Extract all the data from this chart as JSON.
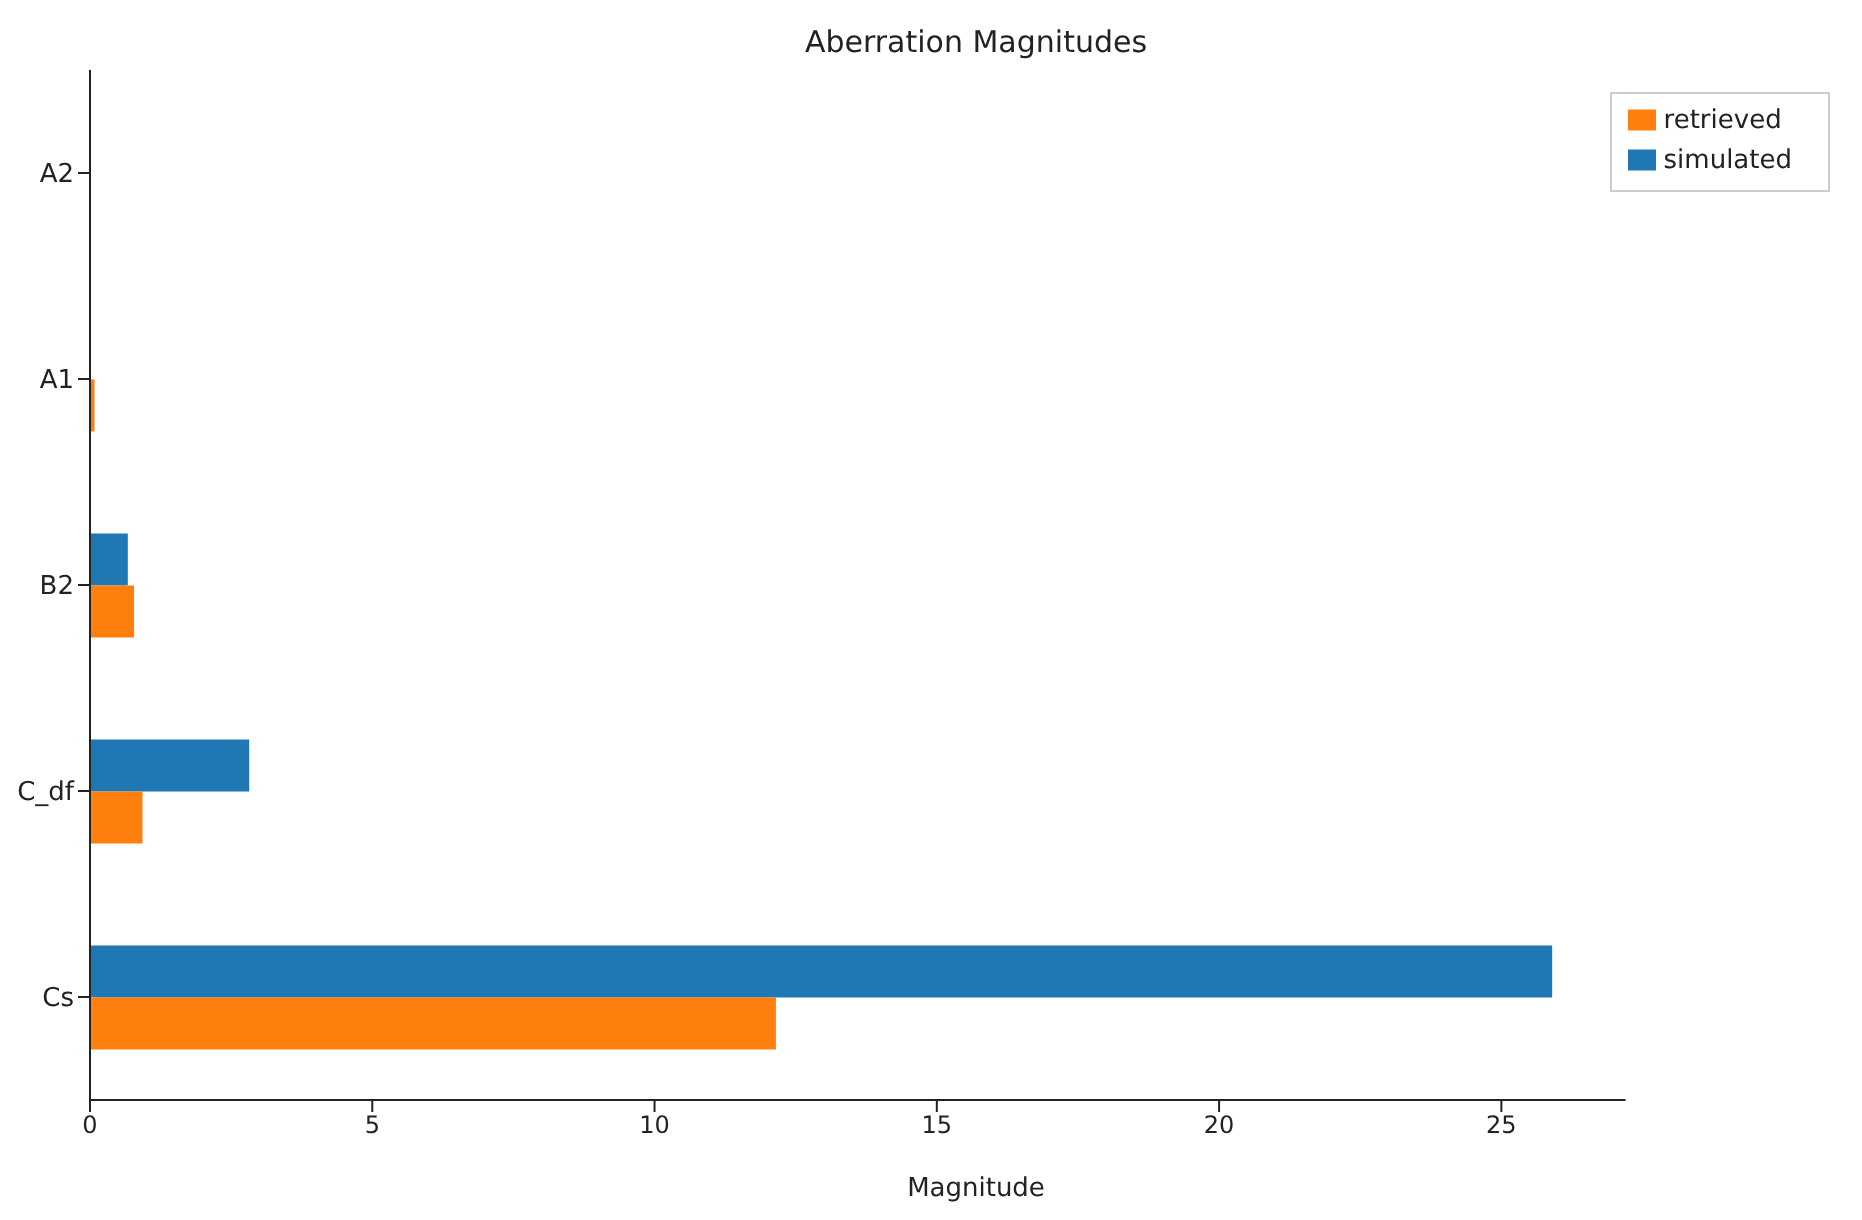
{
  "chart_data": {
    "type": "bar",
    "orientation": "horizontal",
    "title": "Aberration Magnitudes",
    "xlabel": "Magnitude",
    "categories": [
      "A2",
      "A1",
      "B2",
      "C_df",
      "Cs"
    ],
    "series": [
      {
        "name": "simulated",
        "color": "#1f77b4",
        "values": [
          0,
          0,
          0.67,
          2.82,
          25.9
        ]
      },
      {
        "name": "retrieved",
        "color": "#ff7f0e",
        "values": [
          0,
          0.08,
          0.78,
          0.93,
          12.15
        ]
      }
    ],
    "xlim": [
      0,
      27.2
    ],
    "xticks": [
      0,
      5,
      10,
      15,
      20,
      25
    ],
    "legend": "top right",
    "grid": false
  }
}
